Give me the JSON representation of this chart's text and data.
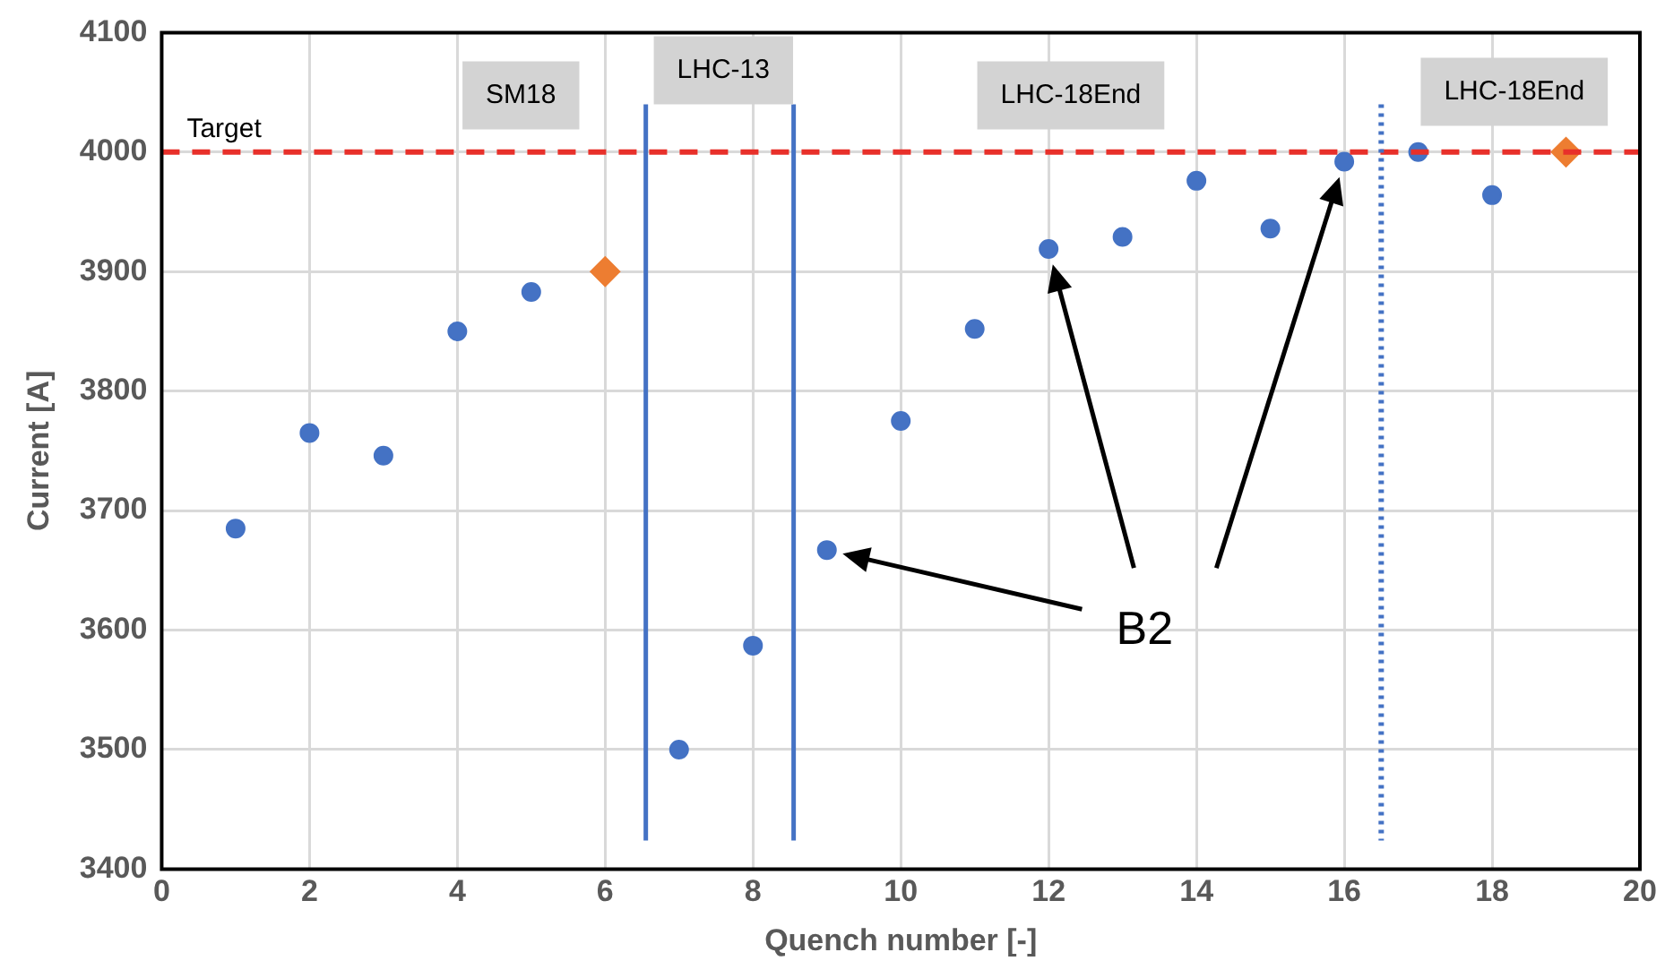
{
  "chart_data": {
    "type": "scatter",
    "xlabel": "Quench number [-]",
    "ylabel": "Current [A]",
    "xlim": [
      0,
      20
    ],
    "xticks": [
      0,
      2,
      4,
      6,
      8,
      10,
      12,
      14,
      16,
      18,
      20
    ],
    "ylim": [
      3400,
      4100
    ],
    "yticks": [
      3400,
      3500,
      3600,
      3700,
      3800,
      3900,
      4000,
      4100
    ],
    "grid": true,
    "legend": false,
    "series": [
      {
        "color": "#4472c4",
        "marker": "circle",
        "x": [
          1,
          2,
          3,
          4,
          5,
          7,
          8,
          9,
          10,
          11,
          12,
          13,
          14,
          15,
          16,
          17,
          18
        ],
        "values": [
          3685,
          3765,
          3746,
          3850,
          3883,
          3500,
          3587,
          3667,
          3775,
          3852,
          3919,
          3929,
          3976,
          3936,
          3992,
          4000,
          3964
        ]
      },
      {
        "color": "#ed7d31",
        "marker": "diamond",
        "x": [
          6,
          19
        ],
        "values": [
          3900,
          4000
        ]
      }
    ],
    "ref_lines": [
      {
        "axis": "y",
        "value": 4000,
        "label": "Target",
        "color": "#e8302a",
        "line_style": "dashed"
      },
      {
        "axis": "x",
        "value": 6.55,
        "color": "#4472c4",
        "line_style": "solid"
      },
      {
        "axis": "x",
        "value": 8.55,
        "color": "#4472c4",
        "line_style": "solid"
      },
      {
        "axis": "x",
        "value": 16.5,
        "color": "#4472c4",
        "line_style": "dotted"
      }
    ],
    "annotations": [
      "SM18",
      "LHC-13",
      "LHC-18End",
      "LHC-18End",
      "B2"
    ]
  }
}
